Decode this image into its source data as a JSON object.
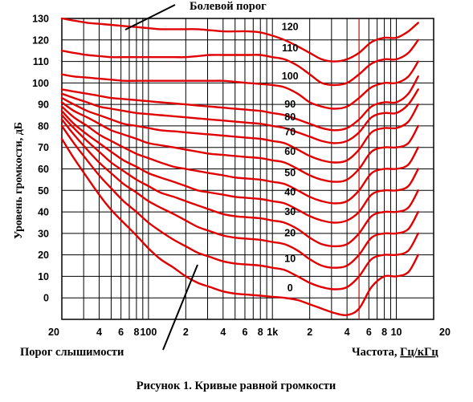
{
  "chart_data": {
    "type": "line",
    "title": "",
    "caption": "Рисунок 1. Кривые равной громкости",
    "ylabel": "Уровень громкости, дБ",
    "xlabel_prefix": "Частота, ",
    "xlabel_unit": "Гц/кГц",
    "x_scale": "log",
    "xlim": [
      20,
      20000
    ],
    "ylim": [
      -10,
      130
    ],
    "grid": true,
    "y_ticks": [
      0,
      10,
      20,
      30,
      40,
      50,
      60,
      70,
      80,
      90,
      100,
      110,
      120,
      130
    ],
    "y_tick_labels": [
      "0",
      "10",
      "20",
      "30",
      "40",
      "50",
      "60",
      "70",
      "80",
      "90",
      "100",
      "110",
      "120",
      "130"
    ],
    "x_ticks": [
      20,
      40,
      60,
      80,
      100,
      200,
      400,
      600,
      800,
      1000,
      2000,
      4000,
      6000,
      8000,
      10000,
      20000
    ],
    "x_tick_labels": [
      "20",
      "4",
      "6",
      "8",
      "100",
      "2",
      "4",
      "6",
      "8",
      "1k",
      "2",
      "4",
      "6",
      "8",
      "10",
      "20"
    ],
    "annotations": {
      "pain_threshold": "Болевой порог",
      "hearing_threshold": "Порог слышимости"
    },
    "x": [
      20,
      25,
      32,
      40,
      50,
      63,
      80,
      100,
      125,
      160,
      200,
      250,
      315,
      400,
      500,
      630,
      800,
      1000,
      1250,
      1600,
      2000,
      2500,
      3150,
      4000,
      5000,
      6300,
      8000,
      10000,
      12500,
      15000
    ],
    "series": [
      {
        "name": "0",
        "values": [
          74,
          65,
          56,
          48,
          41,
          35,
          29,
          23,
          18,
          14,
          10,
          7,
          5,
          3,
          2,
          1.5,
          1,
          0.5,
          0,
          -1,
          -3,
          -5,
          -7,
          -8,
          -5,
          5,
          10,
          10,
          12,
          20
        ]
      },
      {
        "name": "10",
        "values": [
          80,
          72,
          64,
          57,
          51,
          45,
          40,
          35,
          31,
          27,
          24,
          21,
          19,
          17,
          16,
          15.5,
          15,
          14,
          13,
          10,
          7,
          5,
          4,
          5,
          10,
          18,
          20,
          20,
          22,
          30
        ]
      },
      {
        "name": "20",
        "values": [
          83,
          76,
          69,
          63,
          58,
          53,
          49,
          45,
          42,
          39,
          36,
          33,
          31,
          29,
          28,
          27.5,
          27,
          26,
          25,
          22,
          18,
          15,
          14,
          15,
          20,
          28,
          30,
          30,
          32,
          40
        ]
      },
      {
        "name": "30",
        "values": [
          85,
          79,
          73,
          68,
          63,
          59,
          55,
          52,
          49,
          47,
          45,
          43,
          41,
          39,
          38,
          37.5,
          37,
          36,
          35,
          32,
          28,
          25,
          24,
          25,
          30,
          38,
          40,
          40,
          42,
          50
        ]
      },
      {
        "name": "40",
        "values": [
          87,
          81,
          76,
          72,
          68,
          64,
          61,
          58,
          56,
          54,
          52,
          50,
          49,
          48,
          47,
          46.5,
          46,
          45,
          44,
          41,
          38,
          36,
          35,
          36,
          40,
          48,
          50,
          50,
          52,
          60
        ]
      },
      {
        "name": "50",
        "values": [
          89,
          84,
          80,
          76,
          73,
          70,
          67,
          65,
          63,
          61,
          60,
          59,
          58,
          57,
          56,
          55.5,
          55,
          54,
          53,
          50,
          47,
          45,
          44,
          45,
          50,
          58,
          60,
          60,
          62,
          70
        ]
      },
      {
        "name": "60",
        "values": [
          91,
          87,
          84,
          81,
          78,
          76,
          74,
          72,
          71,
          70,
          69,
          68,
          67,
          66.5,
          66,
          65.5,
          65,
          64,
          63,
          60,
          57,
          55,
          54,
          55,
          60,
          68,
          70,
          70,
          72,
          80
        ]
      },
      {
        "name": "70",
        "values": [
          93,
          90,
          87,
          85,
          83,
          81,
          80,
          79,
          78,
          77.5,
          77,
          76.5,
          76,
          75.5,
          75,
          74.5,
          74,
          73,
          72,
          69,
          66,
          64,
          63,
          64,
          69,
          77,
          79,
          79,
          82,
          90
        ]
      },
      {
        "name": "80",
        "values": [
          95,
          93,
          91,
          89,
          88,
          87,
          86,
          85.5,
          85,
          84.5,
          84,
          83.5,
          83,
          82.5,
          82,
          81.5,
          81,
          80,
          79,
          77,
          75,
          73,
          72,
          73,
          77,
          84,
          86,
          86,
          90,
          97
        ]
      },
      {
        "name": "90",
        "values": [
          97,
          96,
          95,
          94,
          93,
          92.5,
          92,
          91.5,
          91,
          90.5,
          90,
          89.5,
          89,
          88.5,
          88,
          87.5,
          87,
          86,
          85,
          83,
          81,
          79,
          78,
          79,
          83,
          89,
          91,
          91,
          95,
          103
        ]
      },
      {
        "name": "100",
        "values": [
          104,
          103,
          102.5,
          102,
          101.5,
          101,
          101,
          101,
          101,
          101,
          101,
          101,
          101,
          101,
          100.5,
          100,
          99.5,
          99,
          98,
          95,
          91,
          89,
          88,
          89,
          93,
          98,
          100,
          100,
          103,
          110
        ]
      },
      {
        "name": "110",
        "values": [
          115,
          114,
          113,
          112.5,
          112,
          112,
          112,
          112,
          112,
          112,
          112,
          112.5,
          113,
          113,
          113,
          113,
          113,
          112,
          111,
          108,
          104,
          100,
          99,
          100,
          104,
          109,
          111,
          111,
          114,
          120
        ]
      },
      {
        "name": "120",
        "values": [
          130,
          129,
          128,
          127.5,
          127,
          126.5,
          126,
          125.5,
          125,
          125,
          125,
          125,
          124.5,
          124,
          124,
          124,
          123.5,
          122,
          120,
          117,
          114,
          111,
          110,
          111,
          114,
          119,
          121,
          121,
          124,
          128
        ]
      }
    ],
    "line_color": "#e00000",
    "marker_line_color": "#e00000",
    "marker_line_x": 5000
  }
}
